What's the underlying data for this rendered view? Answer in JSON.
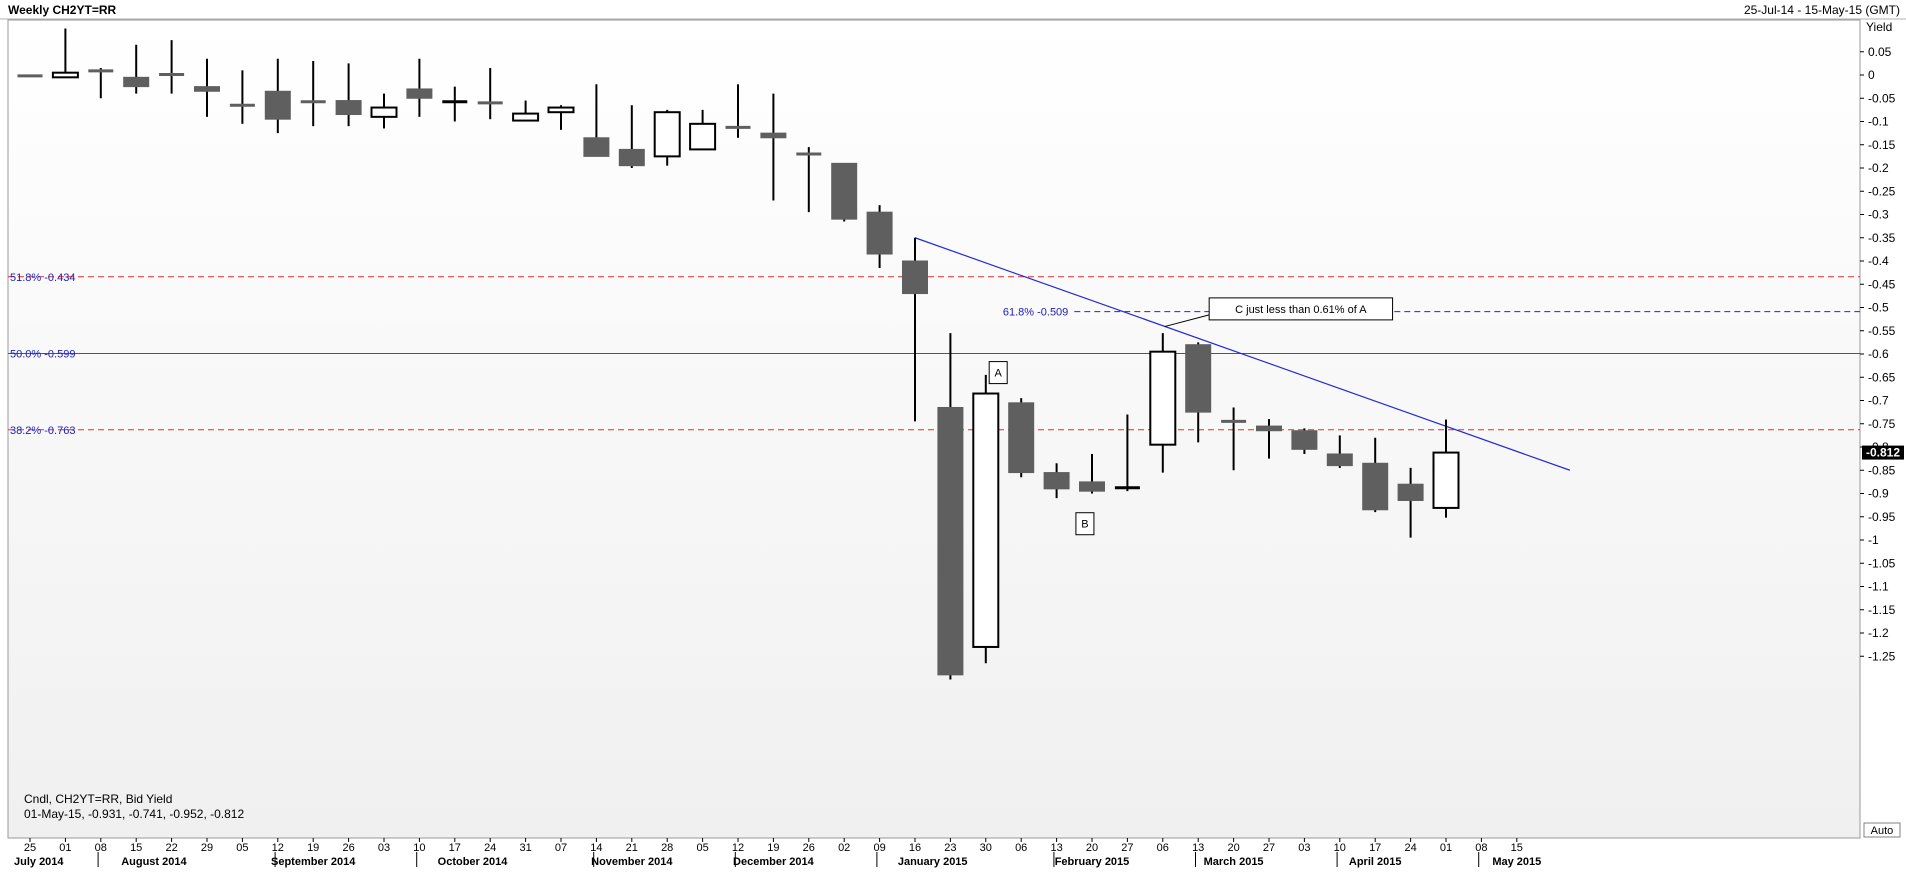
{
  "header": {
    "title": "Weekly CH2YT=RR",
    "range": "25-Jul-14 - 15-May-15 (GMT)"
  },
  "info": {
    "line1": "Cndl, CH2YT=RR, Bid Yield",
    "line2": "01-May-15, -0.931, -0.741, -0.952, -0.812"
  },
  "auto_button": "Auto",
  "last_value_label": "-0.812",
  "chart_data": {
    "type": "candlestick",
    "ylabel": "Yield",
    "ylim": [
      -1.3,
      0.12
    ],
    "y_ticks": [
      0.05,
      0,
      -0.05,
      -0.1,
      -0.15,
      -0.2,
      -0.25,
      -0.3,
      -0.35,
      -0.4,
      -0.45,
      -0.5,
      -0.55,
      -0.6,
      -0.65,
      -0.7,
      -0.75,
      -0.8,
      -0.85,
      -0.9,
      -0.95,
      -1,
      -1.05,
      -1.1,
      -1.15,
      -1.2,
      -1.25
    ],
    "y_tick_labels": [
      "0.05",
      "0",
      "-0.05",
      "-0.1",
      "-0.15",
      "-0.2",
      "-0.25",
      "-0.3",
      "-0.35",
      "-0.4",
      "-0.45",
      "-0.5",
      "-0.55",
      "-0.6",
      "-0.65",
      "-0.7",
      "-0.75",
      "-0.8",
      "-0.85",
      "-0.9",
      "-0.95",
      "-1",
      "-1.05",
      "-1.1",
      "-1.15",
      "-1.2",
      "-1.25"
    ],
    "x_day_labels": [
      "25",
      "01",
      "08",
      "15",
      "22",
      "29",
      "05",
      "12",
      "19",
      "26",
      "03",
      "10",
      "17",
      "24",
      "31",
      "07",
      "14",
      "21",
      "28",
      "05",
      "12",
      "19",
      "26",
      "02",
      "09",
      "16",
      "23",
      "30",
      "06",
      "13",
      "20",
      "27",
      "06",
      "13",
      "20",
      "27",
      "03",
      "10",
      "17",
      "24",
      "01",
      "08",
      "15"
    ],
    "x_month_labels": [
      {
        "label": "July 2014",
        "index": 0
      },
      {
        "label": "August 2014",
        "index": 3.5
      },
      {
        "label": "September 2014",
        "index": 8
      },
      {
        "label": "October 2014",
        "index": 12.5
      },
      {
        "label": "November 2014",
        "index": 17
      },
      {
        "label": "December 2014",
        "index": 21
      },
      {
        "label": "January 2015",
        "index": 25.5
      },
      {
        "label": "February 2015",
        "index": 30
      },
      {
        "label": "March 2015",
        "index": 34
      },
      {
        "label": "April 2015",
        "index": 38
      },
      {
        "label": "May 2015",
        "index": 42
      }
    ],
    "month_dividers": [
      1.5,
      6.5,
      10.5,
      15.5,
      19.5,
      23.5,
      28.5,
      32.5,
      36.5,
      40.5
    ],
    "candles": [
      {
        "date": "25-Jul-14",
        "o": -0.002,
        "h": -0.002,
        "l": -0.002,
        "c": -0.002
      },
      {
        "date": "01-Aug-14",
        "o": -0.005,
        "h": 0.1,
        "l": -0.005,
        "c": 0.005
      },
      {
        "date": "08-Aug-14",
        "o": 0.01,
        "h": 0.015,
        "l": -0.05,
        "c": 0.008
      },
      {
        "date": "15-Aug-14",
        "o": -0.005,
        "h": 0.065,
        "l": -0.04,
        "c": -0.025
      },
      {
        "date": "22-Aug-14",
        "o": 0.002,
        "h": 0.075,
        "l": -0.04,
        "c": 0.0
      },
      {
        "date": "29-Aug-14",
        "o": -0.025,
        "h": 0.035,
        "l": -0.09,
        "c": -0.035
      },
      {
        "date": "05-Sep-14",
        "o": -0.065,
        "h": 0.01,
        "l": -0.105,
        "c": -0.065
      },
      {
        "date": "12-Sep-14",
        "o": -0.035,
        "h": 0.035,
        "l": -0.125,
        "c": -0.095
      },
      {
        "date": "19-Sep-14",
        "o": -0.055,
        "h": 0.03,
        "l": -0.11,
        "c": -0.06
      },
      {
        "date": "26-Sep-14",
        "o": -0.055,
        "h": 0.025,
        "l": -0.11,
        "c": -0.085
      },
      {
        "date": "03-Oct-14",
        "o": -0.09,
        "h": -0.04,
        "l": -0.115,
        "c": -0.07
      },
      {
        "date": "10-Oct-14",
        "o": -0.03,
        "h": 0.035,
        "l": -0.09,
        "c": -0.05
      },
      {
        "date": "17-Oct-14",
        "o": -0.06,
        "h": -0.025,
        "l": -0.1,
        "c": -0.055
      },
      {
        "date": "24-Oct-14",
        "o": -0.06,
        "h": 0.015,
        "l": -0.095,
        "c": -0.06
      },
      {
        "date": "31-Oct-14",
        "o": -0.098,
        "h": -0.055,
        "l": -0.1,
        "c": -0.083
      },
      {
        "date": "07-Nov-14",
        "o": -0.08,
        "h": -0.065,
        "l": -0.118,
        "c": -0.07
      },
      {
        "date": "14-Nov-14",
        "o": -0.135,
        "h": -0.02,
        "l": -0.175,
        "c": -0.175
      },
      {
        "date": "21-Nov-14",
        "o": -0.16,
        "h": -0.065,
        "l": -0.2,
        "c": -0.195
      },
      {
        "date": "28-Nov-14",
        "o": -0.175,
        "h": -0.075,
        "l": -0.195,
        "c": -0.08
      },
      {
        "date": "05-Dec-14",
        "o": -0.16,
        "h": -0.075,
        "l": -0.16,
        "c": -0.105
      },
      {
        "date": "12-Dec-14",
        "o": -0.11,
        "h": -0.02,
        "l": -0.135,
        "c": -0.115
      },
      {
        "date": "19-Dec-14",
        "o": -0.125,
        "h": -0.04,
        "l": -0.27,
        "c": -0.135
      },
      {
        "date": "26-Dec-14",
        "o": -0.17,
        "h": -0.155,
        "l": -0.295,
        "c": -0.17
      },
      {
        "date": "02-Jan-15",
        "o": -0.19,
        "h": -0.19,
        "l": -0.315,
        "c": -0.31
      },
      {
        "date": "09-Jan-15",
        "o": -0.295,
        "h": -0.28,
        "l": -0.415,
        "c": -0.385
      },
      {
        "date": "16-Jan-15",
        "o": -0.4,
        "h": -0.35,
        "l": -0.745,
        "c": -0.47
      },
      {
        "date": "23-Jan-15",
        "o": -0.715,
        "h": -0.555,
        "l": -1.3,
        "c": -1.29
      },
      {
        "date": "30-Jan-15",
        "o": -1.23,
        "h": -0.645,
        "l": -1.265,
        "c": -0.685
      },
      {
        "date": "06-Feb-15",
        "o": -0.705,
        "h": -0.695,
        "l": -0.865,
        "c": -0.855
      },
      {
        "date": "13-Feb-15",
        "o": -0.855,
        "h": -0.835,
        "l": -0.91,
        "c": -0.89
      },
      {
        "date": "20-Feb-15",
        "o": -0.875,
        "h": -0.815,
        "l": -0.9,
        "c": -0.895
      },
      {
        "date": "27-Feb-15",
        "o": -0.89,
        "h": -0.73,
        "l": -0.895,
        "c": -0.885
      },
      {
        "date": "06-Mar-15",
        "o": -0.795,
        "h": -0.555,
        "l": -0.855,
        "c": -0.595
      },
      {
        "date": "13-Mar-15",
        "o": -0.58,
        "h": -0.575,
        "l": -0.79,
        "c": -0.725
      },
      {
        "date": "20-Mar-15",
        "o": -0.745,
        "h": -0.715,
        "l": -0.85,
        "c": -0.745
      },
      {
        "date": "27-Mar-15",
        "o": -0.755,
        "h": -0.74,
        "l": -0.825,
        "c": -0.765
      },
      {
        "date": "03-Apr-15",
        "o": -0.765,
        "h": -0.76,
        "l": -0.815,
        "c": -0.805
      },
      {
        "date": "10-Apr-15",
        "o": -0.815,
        "h": -0.775,
        "l": -0.845,
        "c": -0.84
      },
      {
        "date": "17-Apr-15",
        "o": -0.835,
        "h": -0.78,
        "l": -0.94,
        "c": -0.935
      },
      {
        "date": "24-Apr-15",
        "o": -0.88,
        "h": -0.845,
        "l": -0.995,
        "c": -0.915
      },
      {
        "date": "01-May-15",
        "o": -0.931,
        "h": -0.741,
        "l": -0.952,
        "c": -0.812
      }
    ],
    "fib_levels": [
      {
        "label": "51.8% -0.434",
        "value": -0.434,
        "style": "dashed",
        "color": "#e03030",
        "label_side": "left"
      },
      {
        "label": "50.0% -0.599",
        "value": -0.599,
        "style": "solid",
        "color": "#d81f1f",
        "label_side": "left"
      },
      {
        "label": "38.2% -0.763",
        "value": -0.763,
        "style": "dashed",
        "color": "#e03030",
        "label_side": "left"
      },
      {
        "label": "61.8% -0.509",
        "value": -0.509,
        "style": "dashed",
        "color": "#2a2ab8",
        "label_side": "mid",
        "start_index": 29.5
      }
    ],
    "trendline": {
      "x0": 25,
      "y0": -0.35,
      "x1": 43.5,
      "y1": -0.85,
      "color": "#2828d8"
    },
    "annotations": [
      {
        "text": "A",
        "index": 27.35,
        "value": -0.64
      },
      {
        "text": "B",
        "index": 29.8,
        "value": -0.965
      },
      {
        "text": "C just less than 0.61% of A",
        "index": 35.9,
        "value": -0.503,
        "leader_index": 32.05,
        "leader_value": -0.541
      }
    ],
    "colors": {
      "bear": "#5f5f5f",
      "bull_fill": "#ffffff",
      "outline": "#000000",
      "axis_text": "#000000",
      "fib_label": "#2020b8",
      "last_value_bg": "#000000"
    }
  }
}
